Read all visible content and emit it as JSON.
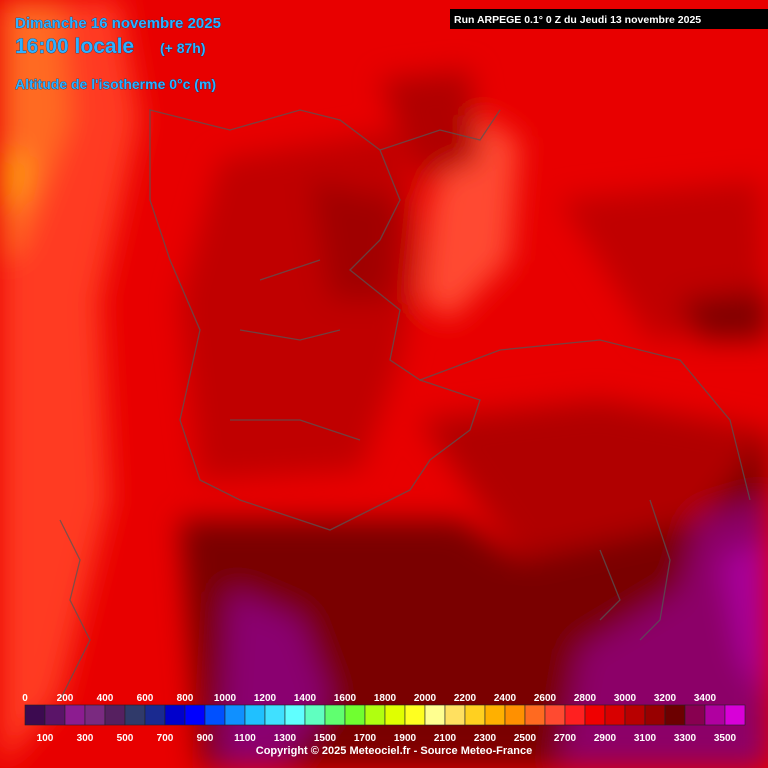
{
  "header": {
    "date": "Dimanche 16 novembre 2025",
    "time": "16:00 locale",
    "lead": "(+ 87h)",
    "parameter": "Altitude de l'isotherme 0°c (m)",
    "run": "Run ARPEGE 0.1° 0 Z du Jeudi 13 novembre 2025"
  },
  "legend": {
    "labels_top": [
      0,
      200,
      400,
      600,
      800,
      1000,
      1200,
      1400,
      1600,
      1800,
      2000,
      2200,
      2400,
      2600,
      2800,
      3000,
      3200,
      3400
    ],
    "labels_bottom": [
      100,
      300,
      500,
      700,
      900,
      1100,
      1300,
      1500,
      1700,
      1900,
      2100,
      2300,
      2500,
      2700,
      2900,
      3100,
      3300,
      3500
    ],
    "colors": [
      "#3c0a50",
      "#5a1468",
      "#8c1c90",
      "#7a2a80",
      "#562060",
      "#303a6a",
      "#1a2a90",
      "#0000cc",
      "#0000ff",
      "#0050ff",
      "#1090ff",
      "#20c0ff",
      "#40e0ff",
      "#60ffff",
      "#60ffc0",
      "#60ff70",
      "#70ff30",
      "#b0ff10",
      "#e0ff00",
      "#ffff20",
      "#ffff90",
      "#ffe060",
      "#ffd020",
      "#ffb000",
      "#ff9000",
      "#ff6a20",
      "#ff4a30",
      "#ff2020",
      "#f00000",
      "#d80000",
      "#b80000",
      "#980000",
      "#6c0000",
      "#880050",
      "#b000a0",
      "#d800d8"
    ]
  },
  "footer": {
    "copyright": "Copyright © 2025 Meteociel.fr - Source Meteo-France"
  }
}
